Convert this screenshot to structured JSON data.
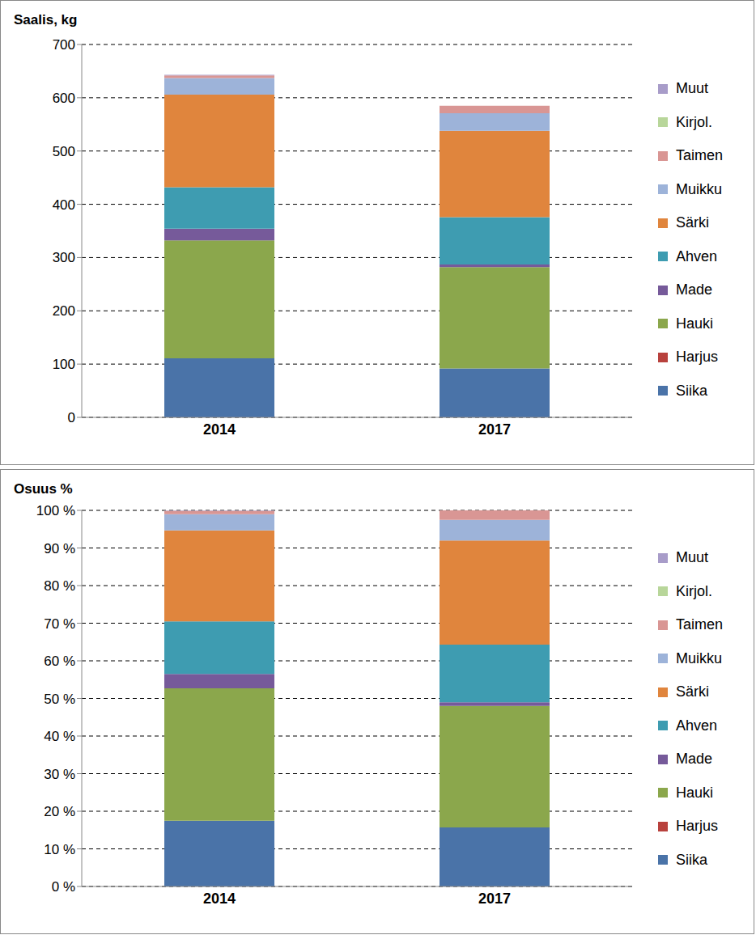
{
  "chart_data": [
    {
      "type": "bar",
      "ylabel": "Saalis, kg",
      "stacked": true,
      "grid": true,
      "categories": [
        "2014",
        "2017"
      ],
      "ylim": [
        0,
        700
      ],
      "yticks": [
        0,
        100,
        200,
        300,
        400,
        500,
        600,
        700
      ],
      "series": [
        {
          "name": "Siika",
          "color": "#4a73a8",
          "values": [
            111,
            92
          ]
        },
        {
          "name": "Harjus",
          "color": "#b8413d",
          "values": [
            0,
            0
          ]
        },
        {
          "name": "Hauki",
          "color": "#8ba74c",
          "values": [
            221,
            190
          ]
        },
        {
          "name": "Made",
          "color": "#765a9a",
          "values": [
            22,
            5
          ]
        },
        {
          "name": "Ahven",
          "color": "#3e9cb1",
          "values": [
            78,
            89
          ]
        },
        {
          "name": "Särki",
          "color": "#e0853d",
          "values": [
            174,
            162
          ]
        },
        {
          "name": "Muikku",
          "color": "#9db3d9",
          "values": [
            31,
            33
          ]
        },
        {
          "name": "Taimen",
          "color": "#d99694",
          "values": [
            5,
            14
          ]
        },
        {
          "name": "Kirjol.",
          "color": "#b8d69a",
          "values": [
            0,
            0
          ]
        },
        {
          "name": "Muut",
          "color": "#a89cc9",
          "values": [
            1,
            0
          ]
        }
      ]
    },
    {
      "type": "bar",
      "ylabel": "Osuus %",
      "stacked": true,
      "grid": true,
      "categories": [
        "2014",
        "2017"
      ],
      "ylim": [
        0,
        100
      ],
      "yticks": [
        {
          "value": 0,
          "label": "0 %"
        },
        {
          "value": 10,
          "label": "10 %"
        },
        {
          "value": 20,
          "label": "20 %"
        },
        {
          "value": 30,
          "label": "30 %"
        },
        {
          "value": 40,
          "label": "40 %"
        },
        {
          "value": 50,
          "label": "50 %"
        },
        {
          "value": 60,
          "label": "60 %"
        },
        {
          "value": 70,
          "label": "70 %"
        },
        {
          "value": 80,
          "label": "80 %"
        },
        {
          "value": 90,
          "label": "90 %"
        },
        {
          "value": 100,
          "label": "100 %"
        }
      ],
      "series": [
        {
          "name": "Siika",
          "color": "#4a73a8",
          "values": [
            17.5,
            15.7
          ]
        },
        {
          "name": "Harjus",
          "color": "#b8413d",
          "values": [
            0,
            0
          ]
        },
        {
          "name": "Hauki",
          "color": "#8ba74c",
          "values": [
            35.2,
            32.3
          ]
        },
        {
          "name": "Made",
          "color": "#765a9a",
          "values": [
            3.8,
            1
          ]
        },
        {
          "name": "Ahven",
          "color": "#3e9cb1",
          "values": [
            14,
            15.3
          ]
        },
        {
          "name": "Särki",
          "color": "#e0853d",
          "values": [
            24.2,
            27.7
          ]
        },
        {
          "name": "Muikku",
          "color": "#9db3d9",
          "values": [
            4.3,
            5.5
          ]
        },
        {
          "name": "Taimen",
          "color": "#d99694",
          "values": [
            0.9,
            2.5
          ]
        },
        {
          "name": "Kirjol.",
          "color": "#b8d69a",
          "values": [
            0,
            0
          ]
        },
        {
          "name": "Muut",
          "color": "#a89cc9",
          "values": [
            0.1,
            0
          ]
        }
      ]
    }
  ]
}
